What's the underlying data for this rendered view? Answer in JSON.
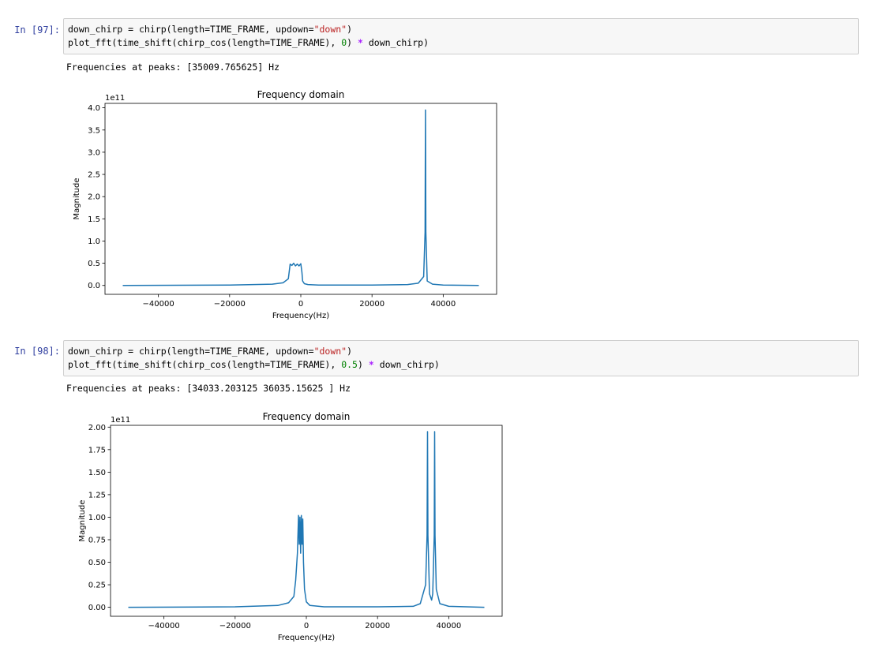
{
  "cells": [
    {
      "prompt": "In [97]:",
      "code_line1": {
        "a": "down_chirp = chirp(length=TIME_FRAME, updown=",
        "b": "\"down\"",
        "c": ")"
      },
      "code_line2": {
        "a": "plot_fft(time_shift(chirp_cos(length=TIME_FRAME), ",
        "b": "0",
        "c": ") ",
        "d": "*",
        "e": " down_chirp)"
      },
      "output": "Frequencies at peaks: [35009.765625] Hz"
    },
    {
      "prompt": "In [98]:",
      "code_line1": {
        "a": "down_chirp = chirp(length=TIME_FRAME, updown=",
        "b": "\"down\"",
        "c": ")"
      },
      "code_line2": {
        "a": "plot_fft(time_shift(chirp_cos(length=TIME_FRAME), ",
        "b": "0.5",
        "c": ") ",
        "d": "*",
        "e": " down_chirp)"
      },
      "output": "Frequencies at peaks: [34033.203125 36035.15625 ] Hz"
    }
  ],
  "colors": {
    "line": "#1f77b4",
    "prompt": "#303f9f",
    "string": "#ba2121",
    "number": "#008000",
    "operator": "#aa22ff"
  },
  "chart_data": [
    {
      "type": "line",
      "title": "Frequency domain",
      "xlabel": "Frequency(Hz)",
      "ylabel": "Magnitude",
      "offset_text": "1e11",
      "xlim": [
        -55000,
        55000
      ],
      "ylim": [
        -0.2,
        4.1
      ],
      "xticks": [
        -40000,
        -20000,
        0,
        20000,
        40000
      ],
      "xtick_labels": [
        "−40000",
        "−20000",
        "0",
        "20000",
        "40000"
      ],
      "yticks": [
        0.0,
        0.5,
        1.0,
        1.5,
        2.0,
        2.5,
        3.0,
        3.5,
        4.0
      ],
      "ytick_labels": [
        "0.0",
        "0.5",
        "1.0",
        "1.5",
        "2.0",
        "2.5",
        "3.0",
        "3.5",
        "4.0"
      ],
      "series": [
        {
          "x": [
            -50000,
            -20000,
            -8000,
            -5000,
            -3500,
            -3000,
            -2500,
            -2000,
            -1500,
            -1000,
            -500,
            0,
            300,
            500,
            1000,
            2000,
            5000,
            20000,
            30000,
            33000,
            34500,
            34900,
            35009.77,
            35120,
            35500,
            37000,
            40000,
            50000
          ],
          "y": [
            0.0,
            0.01,
            0.03,
            0.06,
            0.15,
            0.48,
            0.45,
            0.5,
            0.44,
            0.48,
            0.44,
            0.49,
            0.3,
            0.1,
            0.04,
            0.02,
            0.01,
            0.01,
            0.02,
            0.05,
            0.2,
            1.2,
            3.95,
            1.2,
            0.1,
            0.03,
            0.01,
            0.0
          ]
        }
      ]
    },
    {
      "type": "line",
      "title": "Frequency domain",
      "xlabel": "Frequency(Hz)",
      "ylabel": "Magnitude",
      "offset_text": "1e11",
      "xlim": [
        -55000,
        55000
      ],
      "ylim": [
        -0.1,
        2.02
      ],
      "xticks": [
        -40000,
        -20000,
        0,
        20000,
        40000
      ],
      "xtick_labels": [
        "−40000",
        "−20000",
        "0",
        "20000",
        "40000"
      ],
      "yticks": [
        0.0,
        0.25,
        0.5,
        0.75,
        1.0,
        1.25,
        1.5,
        1.75,
        2.0
      ],
      "ytick_labels": [
        "0.00",
        "0.25",
        "0.50",
        "0.75",
        "1.00",
        "1.25",
        "1.50",
        "1.75",
        "2.00"
      ],
      "series": [
        {
          "x": [
            -50000,
            -20000,
            -8000,
            -5000,
            -3500,
            -3000,
            -2500,
            -2200,
            -2000,
            -1800,
            -1600,
            -1400,
            -1200,
            -1000,
            -800,
            -500,
            0,
            1000,
            5000,
            20000,
            30000,
            32000,
            33500,
            33900,
            34033.2,
            34150,
            34600,
            35200,
            35500,
            35920,
            36035.16,
            36150,
            36500,
            37500,
            40000,
            50000
          ],
          "y": [
            0.0,
            0.005,
            0.02,
            0.05,
            0.12,
            0.3,
            0.6,
            1.02,
            0.7,
            1.0,
            0.6,
            1.02,
            0.7,
            0.98,
            0.5,
            0.2,
            0.06,
            0.02,
            0.005,
            0.005,
            0.01,
            0.04,
            0.25,
            0.8,
            1.95,
            0.8,
            0.15,
            0.08,
            0.15,
            0.8,
            1.95,
            0.8,
            0.2,
            0.04,
            0.01,
            0.0
          ]
        }
      ]
    }
  ]
}
